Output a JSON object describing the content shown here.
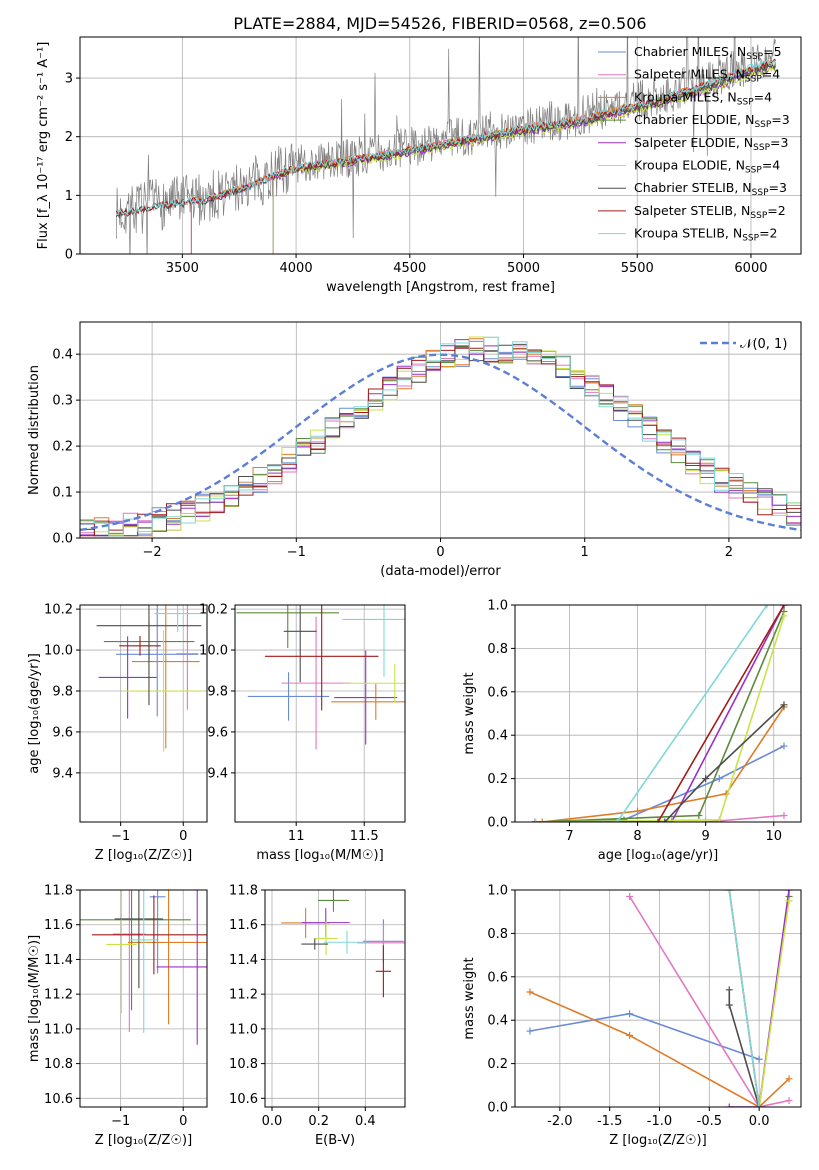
{
  "figure": {
    "title": "PLATE=2884, MJD=54526, FIBERID=0568, z=0.506"
  },
  "series": [
    {
      "name": "Chabrier MILES",
      "nssp": "5",
      "color": "#6a8bd6"
    },
    {
      "name": "Salpeter MILES",
      "nssp": "4",
      "color": "#e377c2"
    },
    {
      "name": "Kroupa MILES",
      "nssp": "4",
      "color": "#e07b28"
    },
    {
      "name": "Chabrier ELODIE",
      "nssp": "3",
      "color": "#5a8a3c"
    },
    {
      "name": "Salpeter ELODIE",
      "nssp": "3",
      "color": "#9b30c8"
    },
    {
      "name": "Kroupa ELODIE",
      "nssp": "4",
      "color": "#c9e24a"
    },
    {
      "name": "Chabrier STELIB",
      "nssp": "3",
      "color": "#4d4d4d"
    },
    {
      "name": "Salpeter STELIB",
      "nssp": "2",
      "color": "#a31a1a"
    },
    {
      "name": "Kroupa STELIB",
      "nssp": "2",
      "color": "#7fd8d8"
    }
  ],
  "chart_data": [
    {
      "id": "spectrum",
      "type": "line",
      "xlabel": "wavelength [Angstrom, rest frame]",
      "ylabel": "Flux [f_λ 10⁻¹⁷ erg cm⁻² s⁻¹ A⁻¹]",
      "xlim": [
        3050,
        6220
      ],
      "ylim": [
        0,
        3.7
      ],
      "xticks": [
        3500,
        4000,
        4500,
        5000,
        5500,
        6000
      ],
      "yticks": [
        0,
        1,
        2,
        3
      ],
      "grid": true,
      "legend": "top-right",
      "data_color": "#808080",
      "model_knots": {
        "x": [
          3210,
          3400,
          3600,
          3800,
          3950,
          4050,
          4200,
          4400,
          4600,
          4800,
          5000,
          5200,
          5400,
          5600,
          5800,
          6000,
          6100
        ],
        "y": [
          0.7,
          0.85,
          0.95,
          1.2,
          1.45,
          1.55,
          1.62,
          1.75,
          1.9,
          2.05,
          2.2,
          2.3,
          2.5,
          2.7,
          2.95,
          3.25,
          3.35
        ]
      }
    },
    {
      "id": "residuals",
      "type": "line",
      "xlabel": "(data-model)/error",
      "ylabel": "Normed distribution",
      "xlim": [
        -2.5,
        2.5
      ],
      "ylim": [
        0,
        0.47
      ],
      "xticks": [
        -2,
        -1,
        0,
        1,
        2
      ],
      "yticks": [
        0.0,
        0.1,
        0.2,
        0.3,
        0.4
      ],
      "grid": true,
      "legend": "top-right",
      "reference": {
        "label": "𝒩(0, 1)",
        "color": "#5b7fd6",
        "style": "dashed"
      }
    },
    {
      "id": "age_vs_Z",
      "type": "scatter",
      "xlabel": "Z [log₁₀(Z/Z☉)]",
      "ylabel": "age  [log₁₀(age/yr)]",
      "xlim": [
        -1.65,
        0.38
      ],
      "ylim": [
        9.16,
        10.22
      ],
      "xticks": [
        -1,
        0
      ],
      "yticks": [
        9.4,
        9.6,
        9.8,
        10.0,
        10.2
      ],
      "grid": true
    },
    {
      "id": "age_vs_mass",
      "type": "scatter",
      "xlabel": "mass [log₁₀(M/M☉)]",
      "ylabel": "",
      "xlim": [
        10.55,
        11.8
      ],
      "ylim": [
        9.16,
        10.22
      ],
      "xticks": [
        11.0,
        11.5
      ],
      "yticks": [
        9.4,
        9.6,
        9.8,
        10.0,
        10.2
      ],
      "grid": true
    },
    {
      "id": "weight_vs_age",
      "type": "line",
      "xlabel": "age  [log₁₀(age/yr)]",
      "ylabel": "mass weight",
      "xlim": [
        6.2,
        10.4
      ],
      "ylim": [
        0,
        1.0
      ],
      "xticks": [
        7,
        8,
        9,
        10
      ],
      "yticks": [
        0.0,
        0.2,
        0.4,
        0.6,
        0.8,
        1.0
      ],
      "grid": true,
      "series": [
        {
          "name": "Chabrier MILES",
          "x": [
            6.5,
            7.8,
            9.2,
            10.15
          ],
          "y": [
            0.0,
            0.01,
            0.2,
            0.35
          ]
        },
        {
          "name": "Salpeter MILES",
          "x": [
            6.5,
            9.0,
            10.15
          ],
          "y": [
            0.0,
            0.0,
            0.03
          ]
        },
        {
          "name": "Kroupa MILES",
          "x": [
            6.6,
            8.0,
            9.3,
            10.15
          ],
          "y": [
            0.0,
            0.05,
            0.13,
            0.53
          ]
        },
        {
          "name": "Chabrier ELODIE",
          "x": [
            6.5,
            8.9,
            10.15
          ],
          "y": [
            0.0,
            0.03,
            0.97
          ]
        },
        {
          "name": "Salpeter ELODIE",
          "x": [
            6.5,
            8.5,
            10.15
          ],
          "y": [
            0.0,
            0.0,
            1.0
          ]
        },
        {
          "name": "Kroupa ELODIE",
          "x": [
            6.5,
            9.2,
            10.15
          ],
          "y": [
            0.0,
            0.01,
            0.95
          ]
        },
        {
          "name": "Chabrier STELIB",
          "x": [
            6.5,
            8.4,
            9.0,
            10.15
          ],
          "y": [
            0.0,
            0.0,
            0.2,
            0.54
          ]
        },
        {
          "name": "Salpeter STELIB",
          "x": [
            6.5,
            8.3,
            10.15
          ],
          "y": [
            0.0,
            0.0,
            1.0
          ]
        },
        {
          "name": "Kroupa STELIB",
          "x": [
            6.5,
            7.7,
            9.9
          ],
          "y": [
            0.0,
            0.0,
            1.0
          ]
        }
      ]
    },
    {
      "id": "mass_vs_Z",
      "type": "scatter",
      "xlabel": "Z [log₁₀(Z/Z☉)]",
      "ylabel": "mass [log₁₀(M/M☉)]",
      "xlim": [
        -1.65,
        0.38
      ],
      "ylim": [
        10.55,
        11.8
      ],
      "xticks": [
        -1,
        0
      ],
      "yticks": [
        10.6,
        10.8,
        11.0,
        11.2,
        11.4,
        11.6,
        11.8
      ],
      "grid": true
    },
    {
      "id": "mass_vs_ebv",
      "type": "scatter",
      "xlabel": "E(B-V)",
      "ylabel": "",
      "xlim": [
        -0.03,
        0.57
      ],
      "ylim": [
        10.55,
        11.8
      ],
      "xticks": [
        0.0,
        0.2,
        0.4
      ],
      "yticks": [
        10.6,
        10.8,
        11.0,
        11.2,
        11.4,
        11.6,
        11.8
      ],
      "grid": true
    },
    {
      "id": "weight_vs_Z",
      "type": "line",
      "xlabel": "Z [log₁₀(Z/Z☉)]",
      "ylabel": "mass weight",
      "xlim": [
        -2.45,
        0.42
      ],
      "ylim": [
        0,
        1.0
      ],
      "xticks": [
        -2.0,
        -1.5,
        -1.0,
        -0.5,
        0.0
      ],
      "yticks": [
        0.0,
        0.2,
        0.4,
        0.6,
        0.8,
        1.0
      ],
      "grid": true,
      "series": [
        {
          "name": "Chabrier MILES",
          "x": [
            -2.3,
            -1.3,
            0.0
          ],
          "y": [
            0.35,
            0.43,
            0.22
          ]
        },
        {
          "name": "Salpeter MILES",
          "x": [
            -1.3,
            0.0,
            0.3
          ],
          "y": [
            0.97,
            0.0,
            0.03
          ]
        },
        {
          "name": "Kroupa MILES",
          "x": [
            -2.3,
            -1.3,
            0.0,
            0.3
          ],
          "y": [
            0.53,
            0.33,
            0.0,
            0.13
          ]
        },
        {
          "name": "Chabrier ELODIE",
          "x": [
            0.0,
            0.3
          ],
          "y": [
            0.0,
            0.97
          ]
        },
        {
          "name": "Salpeter ELODIE",
          "x": [
            -0.3,
            0.0,
            0.3
          ],
          "y": [
            0.0,
            0.0,
            1.0
          ]
        },
        {
          "name": "Kroupa ELODIE",
          "x": [
            0.0,
            0.3
          ],
          "y": [
            0.0,
            0.95
          ]
        },
        {
          "name": "Chabrier STELIB",
          "x": [
            -0.3,
            -0.3,
            0.0
          ],
          "y": [
            0.54,
            0.47,
            0.0
          ]
        },
        {
          "name": "Salpeter STELIB",
          "x": [
            -0.3,
            0.0
          ],
          "y": [
            1.0,
            0.0
          ]
        },
        {
          "name": "Kroupa STELIB",
          "x": [
            -0.3,
            0.0
          ],
          "y": [
            1.0,
            0.0
          ]
        }
      ]
    }
  ]
}
